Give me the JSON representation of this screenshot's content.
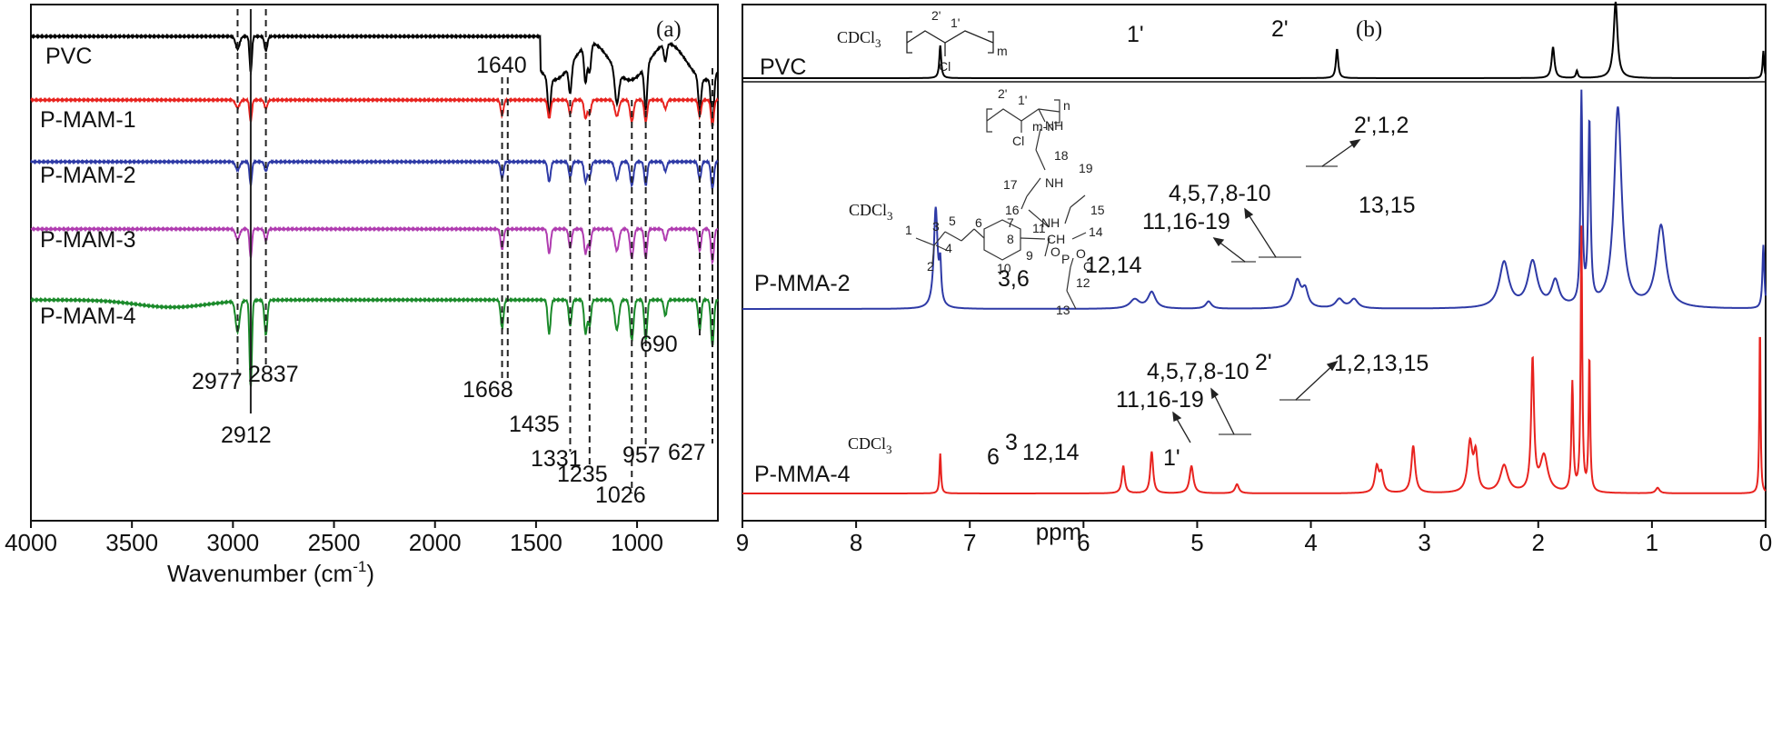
{
  "chart_data": [
    {
      "type": "line",
      "panel_label": "(a)",
      "xlabel_main": "Wavenumber (cm",
      "xlabel_sup": "-1",
      "xlabel_end": ")",
      "xlim": [
        4000,
        600
      ],
      "xticks": [
        "4000",
        "3500",
        "3000",
        "2500",
        "2000",
        "1500",
        "1000"
      ],
      "xtick_values": [
        4000,
        3500,
        3000,
        2500,
        2000,
        1500,
        1000
      ],
      "series": [
        {
          "name": "PVC",
          "color": "#000000",
          "peaks": [
            2977,
            2912,
            2837,
            1435,
            1331,
            1255,
            1100,
            957,
            690,
            627
          ]
        },
        {
          "name": "P-MAM-1",
          "color": "#e8231f",
          "peaks": [
            2912,
            1668,
            1435,
            1331,
            1235,
            1026,
            957,
            690,
            627
          ]
        },
        {
          "name": "P-MAM-2",
          "color": "#2e3aa6",
          "peaks": [
            2912,
            1668,
            1435,
            1331,
            1235,
            1026,
            957,
            690,
            627
          ]
        },
        {
          "name": "P-MAM-3",
          "color": "#b03cb0",
          "peaks": [
            2912,
            1668,
            1435,
            1331,
            1235,
            1026,
            957,
            690,
            627
          ]
        },
        {
          "name": "P-MAM-4",
          "color": "#1a8a2a",
          "peaks": [
            2977,
            2912,
            2837,
            1668,
            1435,
            1331,
            1235,
            1026,
            957,
            690,
            627
          ]
        }
      ],
      "annotations": [
        "2977",
        "2912",
        "2837",
        "1640",
        "1668",
        "1435",
        "1331",
        "1235",
        "1026",
        "957",
        "690",
        "627"
      ]
    },
    {
      "type": "line",
      "panel_label": "(b)",
      "xlabel": "ppm",
      "xlim": [
        9,
        0
      ],
      "xticks": [
        "9",
        "8",
        "7",
        "6",
        "5",
        "4",
        "3",
        "2",
        "1",
        "0"
      ],
      "xtick_values": [
        9,
        8,
        7,
        6,
        5,
        4,
        3,
        2,
        1,
        0
      ],
      "series": [
        {
          "name": "PVC",
          "color": "#000000",
          "peaks": [
            7.26,
            3.77,
            1.87,
            1.66,
            0.02
          ]
        },
        {
          "name": "P-MMA-2",
          "color": "#2e3aa6",
          "peaks": [
            7.26,
            5.5,
            5.4,
            4.9,
            4.1,
            3.75,
            3.62,
            2.3,
            2.05,
            1.85,
            1.62,
            1.55,
            1.3,
            0.92,
            0.02
          ]
        },
        {
          "name": "P-MMA-4",
          "color": "#e8231f",
          "peaks": [
            7.26,
            5.65,
            5.4,
            5.05,
            4.65,
            3.42,
            3.1,
            2.6,
            2.55,
            2.3,
            2.05,
            1.95,
            1.7,
            1.62,
            1.55,
            0.05
          ]
        }
      ],
      "annotations": {
        "pvc": [
          "CDCl3",
          "1'",
          "2'"
        ],
        "mma2": [
          "CDCl3",
          "3,6",
          "12,14",
          "11,16-19",
          "4,5,7,8-10",
          "2',1,2",
          "13,15"
        ],
        "mma4": [
          "CDCl3",
          "6",
          "3",
          "12,14",
          "1'",
          "11,16-19",
          "4,5,7,8-10",
          "2'",
          "1,2,13,15"
        ]
      }
    }
  ],
  "text": {
    "panel_a": "(a)",
    "panel_b": "(b)",
    "pvc_a": "PVC",
    "pmam1": "P-MAM-1",
    "pmam2": "P-MAM-2",
    "pmam3": "P-MAM-3",
    "pmam4": "P-MAM-4",
    "pvc_b": "PVC",
    "pmma2": "P-MMA-2",
    "pmma4": "P-MMA-4",
    "wavenumber": "Wavenumber (cm",
    "wavenumber_sup": "-1",
    "wavenumber_end": ")",
    "ppm": "ppm",
    "cdcl": "CDCl",
    "cdcl_sub": "3",
    "p2977": "2977",
    "p2912": "2912",
    "p2837": "2837",
    "p1640": "1640",
    "p1668": "1668",
    "p1435": "1435",
    "p1331": "1331",
    "p1235": "1235",
    "p1026": "1026",
    "p957": "957",
    "p690": "690",
    "p627": "627",
    "pvc_1p": "1'",
    "pvc_2p": "2'",
    "m2_36": "3,6",
    "m2_1214": "12,14",
    "m2_1116": "11,16-19",
    "m2_4578": "4,5,7,8-10",
    "m2_2p12": "2',1,2",
    "m2_1315": "13,15",
    "m4_6": "6",
    "m4_3": "3",
    "m4_1214": "12,14",
    "m4_1p": "1'",
    "m4_1116": "11,16-19",
    "m4_4578": "4,5,7,8-10",
    "m4_2p": "2'",
    "m4_121315": "1,2,13,15",
    "s_2p": "2'",
    "s_1p": "1'",
    "s_m": "m",
    "s_cl": "Cl",
    "s2_mn": "m-n",
    "s2_n": "n",
    "s2_nh": "NH",
    "s2_18": "18",
    "s2_19": "19",
    "s2_17": "17",
    "s2_16": "16",
    "s2_15": "15",
    "s2_14": "14",
    "s2_7": "7",
    "s2_6": "6",
    "s2_5": "5",
    "s2_8": "8",
    "s2_11": "11",
    "s2_ch": "CH",
    "s2_p": "P",
    "s2_o": "O",
    "s2_1": "1",
    "s2_3": "3",
    "s2_4": "4",
    "s2_2": "2",
    "s2_9": "9",
    "s2_10": "10",
    "s2_12": "12",
    "s2_13": "13"
  }
}
